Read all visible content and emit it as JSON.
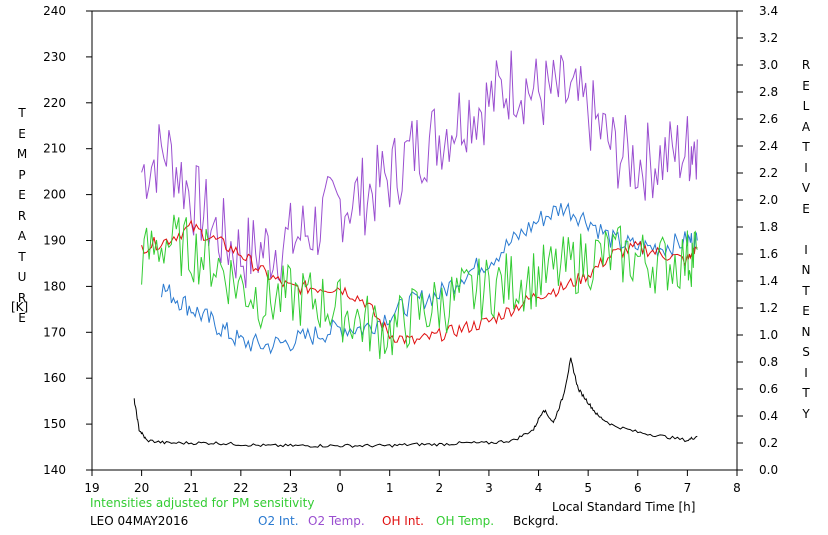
{
  "chart_data": {
    "type": "line",
    "x_ticks": [
      "19",
      "20",
      "21",
      "22",
      "23",
      "0",
      "1",
      "2",
      "3",
      "4",
      "5",
      "6",
      "7",
      "8"
    ],
    "x_range_hours": [
      19,
      32
    ],
    "xlabel": "Local Standard Time [h]",
    "ylabel_left": "TEMPERATURE",
    "ylabel_left_unit": "[K]",
    "ylabel_right": "RELATIVE INTENSITY",
    "ylim_left": [
      140,
      240
    ],
    "ylim_right": [
      0.0,
      3.4
    ],
    "y_ticks_left": [
      "140",
      "150",
      "160",
      "170",
      "180",
      "190",
      "200",
      "210",
      "220",
      "230",
      "240"
    ],
    "y_ticks_right": [
      "0.0",
      "0.2",
      "0.4",
      "0.6",
      "0.8",
      "1.0",
      "1.2",
      "1.4",
      "1.6",
      "1.8",
      "2.0",
      "2.2",
      "2.4",
      "2.6",
      "2.8",
      "3.0",
      "3.2",
      "3.4"
    ],
    "note": "Intensities adjusted for PM sensitivity",
    "station": "LEO 04MAY2016",
    "grid": false,
    "legend": [
      {
        "label": "O2 Int.",
        "color": "#2a7ad0"
      },
      {
        "label": "O2 Temp.",
        "color": "#9a4fd0"
      },
      {
        "label": "OH Int.",
        "color": "#e01010"
      },
      {
        "label": "OH Temp.",
        "color": "#33cc33"
      },
      {
        "label": "Bckgrd.",
        "color": "#000000"
      }
    ],
    "series": [
      {
        "name": "O2 Temp.",
        "axis": "left",
        "color": "#9a4fd0",
        "x": [
          20.0,
          20.5,
          21.0,
          21.5,
          22.0,
          22.5,
          23.0,
          23.5,
          24.0,
          24.5,
          25.0,
          25.5,
          26.0,
          26.5,
          27.0,
          27.5,
          28.0,
          28.5,
          29.0,
          29.5,
          30.0,
          30.5,
          31.0,
          31.2
        ],
        "y": [
          205,
          210,
          200,
          192,
          187,
          188,
          190,
          193,
          198,
          200,
          204,
          210,
          213,
          218,
          220,
          225,
          222,
          222,
          218,
          210,
          207,
          208,
          210,
          212
        ]
      },
      {
        "name": "O2 Int.",
        "axis": "right",
        "color": "#2a7ad0",
        "x": [
          20.4,
          20.8,
          21.2,
          21.6,
          22.0,
          22.5,
          23.0,
          23.5,
          24.0,
          24.5,
          25.0,
          25.5,
          26.0,
          26.5,
          27.0,
          27.5,
          28.0,
          28.5,
          29.0,
          29.5,
          30.0,
          30.5,
          31.0,
          31.2
        ],
        "y": [
          1.35,
          1.25,
          1.15,
          1.05,
          0.95,
          0.92,
          0.95,
          1.0,
          1.05,
          1.05,
          1.15,
          1.25,
          1.3,
          1.45,
          1.55,
          1.7,
          1.85,
          1.95,
          1.85,
          1.7,
          1.65,
          1.65,
          1.7,
          1.7
        ]
      },
      {
        "name": "OH Int.",
        "axis": "right",
        "color": "#e01010",
        "x": [
          20.0,
          20.5,
          21.0,
          21.5,
          22.0,
          22.5,
          23.0,
          23.5,
          24.0,
          24.5,
          25.0,
          25.5,
          26.0,
          26.5,
          27.0,
          27.5,
          28.0,
          28.5,
          29.0,
          29.5,
          30.0,
          30.5,
          31.0,
          31.2
        ],
        "y": [
          1.65,
          1.7,
          1.8,
          1.7,
          1.6,
          1.45,
          1.35,
          1.35,
          1.35,
          1.25,
          1.0,
          0.95,
          1.0,
          1.05,
          1.1,
          1.2,
          1.3,
          1.35,
          1.45,
          1.6,
          1.65,
          1.6,
          1.55,
          1.65
        ]
      },
      {
        "name": "OH Temp.",
        "axis": "left",
        "color": "#33cc33",
        "x": [
          20.0,
          20.5,
          21.0,
          21.5,
          22.0,
          22.5,
          23.0,
          23.5,
          24.0,
          24.5,
          25.0,
          25.5,
          26.0,
          26.5,
          27.0,
          27.5,
          28.0,
          28.5,
          29.0,
          29.5,
          30.0,
          30.5,
          31.0,
          31.2
        ],
        "y": [
          186,
          190,
          188,
          185,
          180,
          177,
          178,
          177,
          175,
          172,
          170,
          174,
          176,
          178,
          180,
          181,
          182,
          184,
          186,
          187,
          186,
          185,
          186,
          188
        ]
      },
      {
        "name": "Bckgrd.",
        "axis": "right",
        "color": "#000000",
        "x": [
          19.85,
          19.95,
          20.1,
          20.5,
          21.0,
          21.5,
          22.0,
          22.5,
          23.0,
          23.5,
          24.0,
          24.5,
          25.0,
          25.5,
          26.0,
          26.5,
          27.0,
          27.5,
          27.9,
          28.1,
          28.3,
          28.5,
          28.65,
          28.8,
          29.0,
          29.2,
          29.5,
          30.0,
          30.5,
          31.0,
          31.2
        ],
        "y": [
          0.52,
          0.3,
          0.22,
          0.2,
          0.2,
          0.2,
          0.19,
          0.18,
          0.18,
          0.18,
          0.18,
          0.18,
          0.18,
          0.19,
          0.19,
          0.2,
          0.2,
          0.22,
          0.3,
          0.45,
          0.35,
          0.55,
          0.82,
          0.6,
          0.5,
          0.4,
          0.33,
          0.28,
          0.25,
          0.22,
          0.25
        ]
      }
    ]
  }
}
